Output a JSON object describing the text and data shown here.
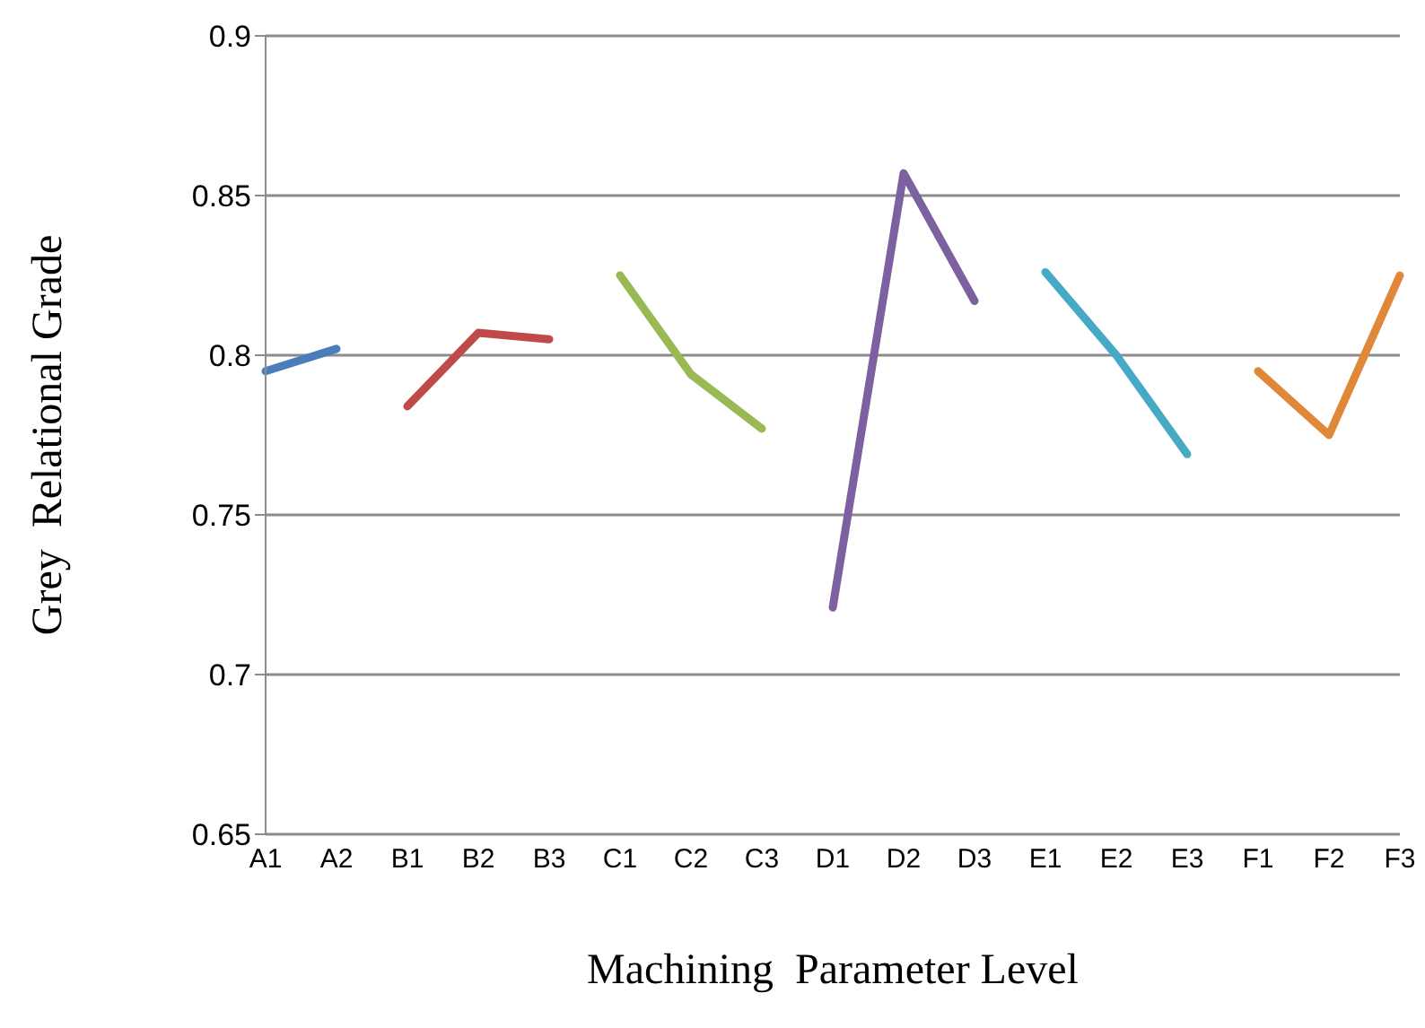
{
  "chart_data": {
    "type": "line",
    "xlabel": "Machining  Parameter Level",
    "ylabel": "Grey  Relational Grade",
    "categories": [
      "A1",
      "A2",
      "B1",
      "B2",
      "B3",
      "C1",
      "C2",
      "C3",
      "D1",
      "D2",
      "D3",
      "E1",
      "E2",
      "E3",
      "F1",
      "F2",
      "F3"
    ],
    "series": [
      {
        "color": "#4a7ebb",
        "values": [
          0.795,
          0.802,
          null,
          null,
          null,
          null,
          null,
          null,
          null,
          null,
          null,
          null,
          null,
          null,
          null,
          null,
          null
        ]
      },
      {
        "color": "#be4b48",
        "values": [
          null,
          null,
          0.784,
          0.807,
          0.805,
          null,
          null,
          null,
          null,
          null,
          null,
          null,
          null,
          null,
          null,
          null,
          null
        ]
      },
      {
        "color": "#98b954",
        "values": [
          null,
          null,
          null,
          null,
          null,
          0.825,
          0.794,
          0.777,
          null,
          null,
          null,
          null,
          null,
          null,
          null,
          null,
          null
        ]
      },
      {
        "color": "#7d60a0",
        "values": [
          null,
          null,
          null,
          null,
          null,
          null,
          null,
          null,
          0.721,
          0.857,
          0.817,
          null,
          null,
          null,
          null,
          null,
          null
        ]
      },
      {
        "color": "#46aac5",
        "values": [
          null,
          null,
          null,
          null,
          null,
          null,
          null,
          null,
          null,
          null,
          null,
          0.826,
          0.8,
          0.769,
          null,
          null,
          null
        ]
      },
      {
        "color": "#e0883a",
        "values": [
          null,
          null,
          null,
          null,
          null,
          null,
          null,
          null,
          null,
          null,
          null,
          null,
          null,
          null,
          0.795,
          0.775,
          0.825
        ]
      }
    ],
    "ylim": [
      0.65,
      0.9
    ],
    "yticks": [
      0.65,
      0.7,
      0.75,
      0.8,
      0.85,
      0.9
    ],
    "grid": "y",
    "marker": "none",
    "line_style": "solid",
    "legend": false
  }
}
